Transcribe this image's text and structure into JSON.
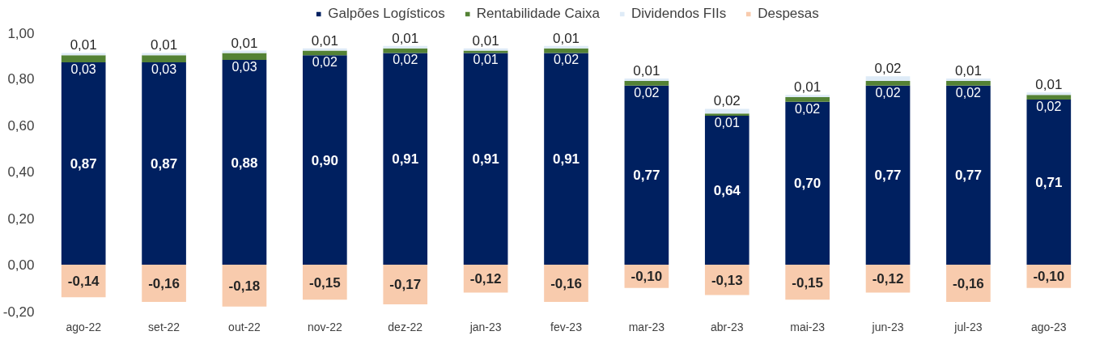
{
  "chart_data": {
    "type": "bar",
    "stacked": true,
    "legend": "top",
    "grid": false,
    "categories": [
      "ago-22",
      "set-22",
      "out-22",
      "nov-22",
      "dez-22",
      "jan-23",
      "fev-23",
      "mar-23",
      "abr-23",
      "mai-23",
      "jun-23",
      "jul-23",
      "ago-23"
    ],
    "series": [
      {
        "name": "Galpões Logísticos",
        "color": "#002060",
        "values": [
          0.87,
          0.87,
          0.88,
          0.9,
          0.91,
          0.91,
          0.91,
          0.77,
          0.64,
          0.7,
          0.77,
          0.77,
          0.71
        ],
        "value_labels": [
          "0,87",
          "0,87",
          "0,88",
          "0,90",
          "0,91",
          "0,91",
          "0,91",
          "0,77",
          "0,64",
          "0,70",
          "0,77",
          "0,77",
          "0,71"
        ]
      },
      {
        "name": "Rentabilidade Caixa",
        "color": "#548235",
        "values": [
          0.03,
          0.03,
          0.03,
          0.02,
          0.02,
          0.01,
          0.02,
          0.02,
          0.01,
          0.02,
          0.02,
          0.02,
          0.02
        ],
        "value_labels": [
          "0,03",
          "0,03",
          "0,03",
          "0,02",
          "0,02",
          "0,01",
          "0,02",
          "0,02",
          "0,01",
          "0,02",
          "0,02",
          "0,02",
          "0,02"
        ]
      },
      {
        "name": "Dividendos FIIs",
        "color": "#deebf7",
        "values": [
          0.01,
          0.01,
          0.01,
          0.01,
          0.01,
          0.01,
          0.01,
          0.01,
          0.02,
          0.01,
          0.02,
          0.01,
          0.01
        ],
        "value_labels": [
          "0,01",
          "0,01",
          "0,01",
          "0,01",
          "0,01",
          "0,01",
          "0,01",
          "0,01",
          "0,02",
          "0,01",
          "0,02",
          "0,01",
          "0,01"
        ]
      },
      {
        "name": "Despesas",
        "color": "#f8cbad",
        "values": [
          -0.14,
          -0.16,
          -0.18,
          -0.15,
          -0.17,
          -0.12,
          -0.16,
          -0.1,
          -0.13,
          -0.15,
          -0.12,
          -0.16,
          -0.1
        ],
        "value_labels": [
          "-0,14",
          "-0,16",
          "-0,18",
          "-0,15",
          "-0,17",
          "-0,12",
          "-0,16",
          "-0,10",
          "-0,13",
          "-0,15",
          "-0,12",
          "-0,16",
          "-0,10"
        ]
      }
    ],
    "ylim": [
      -0.2,
      1.0
    ],
    "yticks": [
      {
        "value": -0.2,
        "label": "-0,20"
      },
      {
        "value": 0,
        "label": "0,00"
      },
      {
        "value": 0.2,
        "label": "0,20"
      },
      {
        "value": 0.4,
        "label": "0,40"
      },
      {
        "value": 0.6,
        "label": "0,60"
      },
      {
        "value": 0.8,
        "label": "0,80"
      },
      {
        "value": 1.0,
        "label": "1,00"
      }
    ]
  }
}
